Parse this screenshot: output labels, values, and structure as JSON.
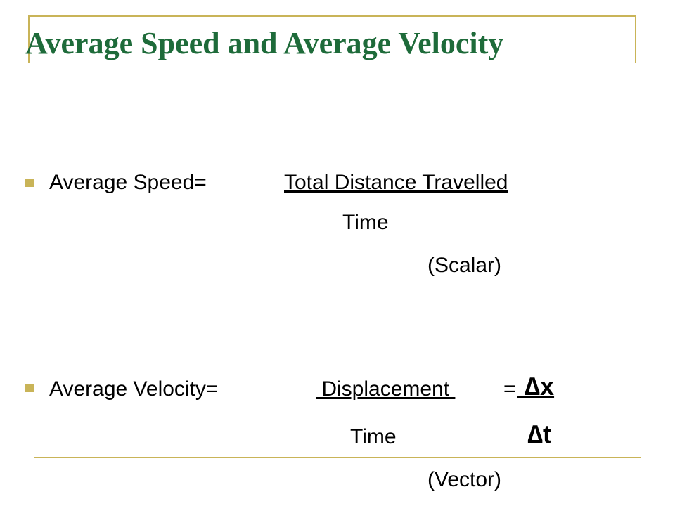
{
  "slide": {
    "title": "Average Speed and Average Velocity",
    "colors": {
      "title": "#1e6b3a",
      "accent": "#c9b458"
    }
  },
  "speed": {
    "label": "Average Speed=",
    "numerator": "Total Distance Travelled",
    "denominator": "Time",
    "type": "(Scalar)"
  },
  "velocity": {
    "label": "Average Velocity=",
    "numerator": " Displacement ",
    "equals": "=",
    "delta_x": " ∆x",
    "denominator": "Time",
    "delta_t": "∆t",
    "type": "(Vector)"
  }
}
